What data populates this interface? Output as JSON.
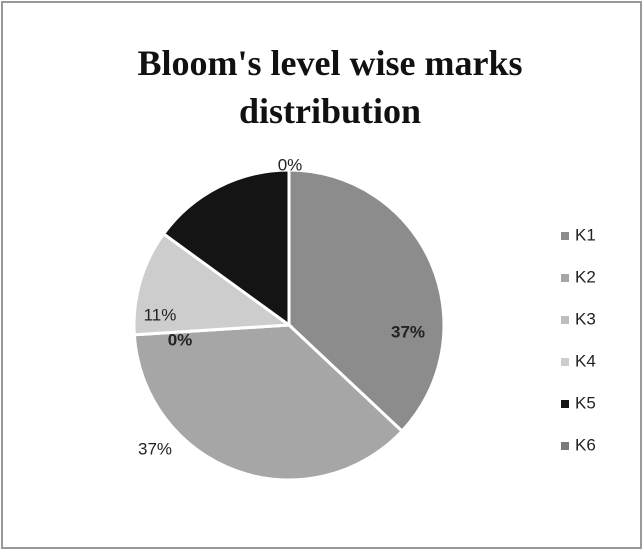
{
  "chart_data": {
    "type": "pie",
    "title": "Bloom's level wise marks distribution",
    "categories": [
      "K1",
      "K2",
      "K3",
      "K4",
      "K5",
      "K6"
    ],
    "values": [
      37,
      37,
      0,
      11,
      15,
      0
    ],
    "value_labels": [
      "37%",
      "37%",
      "0%",
      "11%",
      null,
      "0%"
    ],
    "colors": [
      "#8c8c8c",
      "#a6a6a6",
      "#bdbdbd",
      "#cdcdcd",
      "#141414",
      "#7a7a7a"
    ],
    "legend": "right"
  }
}
